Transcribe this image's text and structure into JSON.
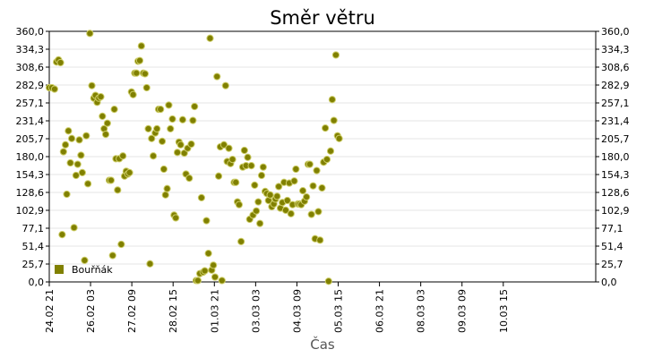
{
  "chart_data": {
    "type": "scatter",
    "title": "Směr větru",
    "xlabel": "Čas",
    "ylabel": "°",
    "ylim": [
      0,
      360
    ],
    "yticks": [
      "0,0",
      "25,7",
      "51,4",
      "77,1",
      "102,9",
      "128,6",
      "154,3",
      "180,0",
      "205,7",
      "231,4",
      "257,1",
      "282,9",
      "308,6",
      "334,3",
      "360,0"
    ],
    "xlim": [
      0,
      16.55
    ],
    "xticks": [
      {
        "label": "24.02 21",
        "x": 0
      },
      {
        "label": "26.02 03",
        "x": 1.25
      },
      {
        "label": "27.02 09",
        "x": 2.5
      },
      {
        "label": "28.02 15",
        "x": 3.75
      },
      {
        "label": "01.03 21",
        "x": 5
      },
      {
        "label": "03.03 03",
        "x": 6.25
      },
      {
        "label": "04.03 09",
        "x": 7.5
      },
      {
        "label": "05.03 15",
        "x": 8.75
      },
      {
        "label": "06.03 21",
        "x": 10
      },
      {
        "label": "08.03 03",
        "x": 11.25
      },
      {
        "label": "09.03 09",
        "x": 12.5
      },
      {
        "label": "10.03 15",
        "x": 13.75
      }
    ],
    "grid": true,
    "legend_position": "bottom-left",
    "series": [
      {
        "name": "Bouřňák",
        "color": "#808000",
        "points": [
          [
            0.0,
            279
          ],
          [
            0.08,
            279
          ],
          [
            0.16,
            277
          ],
          [
            0.22,
            316
          ],
          [
            0.28,
            319
          ],
          [
            0.34,
            315
          ],
          [
            0.39,
            68
          ],
          [
            0.43,
            187
          ],
          [
            0.49,
            197
          ],
          [
            0.53,
            126
          ],
          [
            0.58,
            217
          ],
          [
            0.64,
            171
          ],
          [
            0.68,
            206
          ],
          [
            0.75,
            78
          ],
          [
            0.81,
            153
          ],
          [
            0.86,
            169
          ],
          [
            0.91,
            204
          ],
          [
            0.96,
            182
          ],
          [
            1.0,
            157
          ],
          [
            1.07,
            31
          ],
          [
            1.12,
            210
          ],
          [
            1.17,
            141
          ],
          [
            1.23,
            357
          ],
          [
            1.29,
            282
          ],
          [
            1.35,
            264
          ],
          [
            1.4,
            268
          ],
          [
            1.45,
            258
          ],
          [
            1.5,
            264
          ],
          [
            1.56,
            266
          ],
          [
            1.61,
            238
          ],
          [
            1.66,
            220
          ],
          [
            1.71,
            212
          ],
          [
            1.76,
            228
          ],
          [
            1.82,
            146
          ],
          [
            1.87,
            146
          ],
          [
            1.92,
            38
          ],
          [
            1.97,
            248
          ],
          [
            2.02,
            177
          ],
          [
            2.07,
            132
          ],
          [
            2.12,
            177
          ],
          [
            2.18,
            54
          ],
          [
            2.23,
            181
          ],
          [
            2.28,
            152
          ],
          [
            2.33,
            159
          ],
          [
            2.38,
            155
          ],
          [
            2.43,
            157
          ],
          [
            2.49,
            273
          ],
          [
            2.54,
            269
          ],
          [
            2.59,
            300
          ],
          [
            2.64,
            300
          ],
          [
            2.69,
            317
          ],
          [
            2.74,
            318
          ],
          [
            2.79,
            339
          ],
          [
            2.85,
            300
          ],
          [
            2.9,
            299
          ],
          [
            2.95,
            279
          ],
          [
            3.0,
            220
          ],
          [
            3.05,
            26
          ],
          [
            3.1,
            206
          ],
          [
            3.15,
            181
          ],
          [
            3.21,
            214
          ],
          [
            3.26,
            220
          ],
          [
            3.31,
            248
          ],
          [
            3.37,
            248
          ],
          [
            3.42,
            202
          ],
          [
            3.47,
            162
          ],
          [
            3.52,
            125
          ],
          [
            3.57,
            134
          ],
          [
            3.62,
            254
          ],
          [
            3.67,
            220
          ],
          [
            3.73,
            234
          ],
          [
            3.78,
            96
          ],
          [
            3.83,
            92
          ],
          [
            3.88,
            186
          ],
          [
            3.93,
            201
          ],
          [
            3.98,
            197
          ],
          [
            4.04,
            233
          ],
          [
            4.09,
            185
          ],
          [
            4.14,
            155
          ],
          [
            4.19,
            192
          ],
          [
            4.24,
            149
          ],
          [
            4.3,
            198
          ],
          [
            4.35,
            232
          ],
          [
            4.4,
            252
          ],
          [
            4.45,
            2
          ],
          [
            4.5,
            2
          ],
          [
            4.56,
            12
          ],
          [
            4.61,
            121
          ],
          [
            4.66,
            14
          ],
          [
            4.71,
            16
          ],
          [
            4.76,
            88
          ],
          [
            4.82,
            41
          ],
          [
            4.87,
            350
          ],
          [
            4.92,
            17
          ],
          [
            4.97,
            24
          ],
          [
            5.02,
            7
          ],
          [
            5.08,
            295
          ],
          [
            5.13,
            152
          ],
          [
            5.18,
            194
          ],
          [
            5.23,
            2
          ],
          [
            5.29,
            197
          ],
          [
            5.34,
            282
          ],
          [
            5.39,
            173
          ],
          [
            5.44,
            192
          ],
          [
            5.49,
            170
          ],
          [
            5.55,
            176
          ],
          [
            5.6,
            143
          ],
          [
            5.65,
            143
          ],
          [
            5.7,
            115
          ],
          [
            5.75,
            111
          ],
          [
            5.81,
            58
          ],
          [
            5.86,
            165
          ],
          [
            5.91,
            189
          ],
          [
            5.96,
            167
          ],
          [
            6.01,
            179
          ],
          [
            6.07,
            90
          ],
          [
            6.12,
            167
          ],
          [
            6.17,
            96
          ],
          [
            6.22,
            139
          ],
          [
            6.27,
            102
          ],
          [
            6.33,
            115
          ],
          [
            6.38,
            84
          ],
          [
            6.43,
            153
          ],
          [
            6.48,
            165
          ],
          [
            6.54,
            130
          ],
          [
            6.59,
            127
          ],
          [
            6.64,
            117
          ],
          [
            6.69,
            125
          ],
          [
            6.74,
            108
          ],
          [
            6.8,
            112
          ],
          [
            6.85,
            119
          ],
          [
            6.9,
            123
          ],
          [
            6.95,
            137
          ],
          [
            7.0,
            106
          ],
          [
            7.06,
            114
          ],
          [
            7.11,
            143
          ],
          [
            7.16,
            103
          ],
          [
            7.21,
            117
          ],
          [
            7.27,
            142
          ],
          [
            7.32,
            98
          ],
          [
            7.37,
            111
          ],
          [
            7.42,
            145
          ],
          [
            7.47,
            162
          ],
          [
            7.53,
            112
          ],
          [
            7.58,
            112
          ],
          [
            7.63,
            111
          ],
          [
            7.68,
            131
          ],
          [
            7.73,
            116
          ],
          [
            7.79,
            122
          ],
          [
            7.84,
            169
          ],
          [
            7.89,
            169
          ],
          [
            7.94,
            97
          ],
          [
            7.99,
            138
          ],
          [
            8.05,
            62
          ],
          [
            8.1,
            160
          ],
          [
            8.15,
            101
          ],
          [
            8.2,
            60
          ],
          [
            8.26,
            135
          ],
          [
            8.31,
            172
          ],
          [
            8.36,
            221
          ],
          [
            8.41,
            176
          ],
          [
            8.46,
            1
          ],
          [
            8.52,
            188
          ],
          [
            8.57,
            262
          ],
          [
            8.62,
            232
          ],
          [
            8.68,
            326
          ],
          [
            8.73,
            210
          ],
          [
            8.78,
            206
          ]
        ]
      }
    ]
  }
}
